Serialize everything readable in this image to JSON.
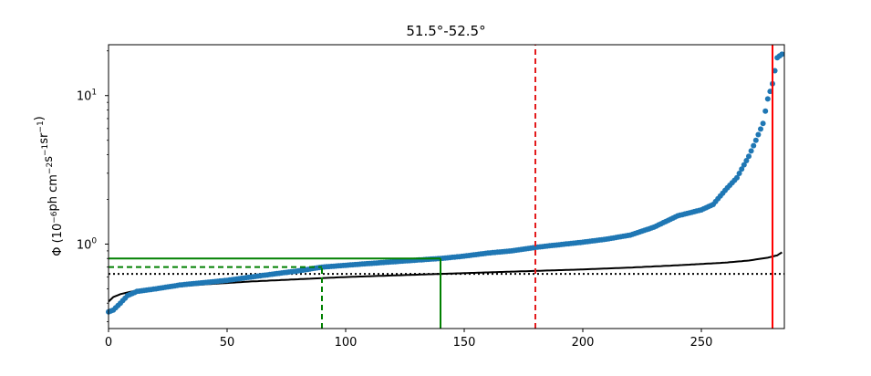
{
  "chart_data": {
    "type": "scatter",
    "title": "51.5°-52.5°",
    "xlabel": "",
    "ylabel_base": "Φ (10",
    "ylabel_parts": [
      {
        "text": "Φ (10",
        "sup": false
      },
      {
        "text": "−6",
        "sup": true
      },
      {
        "text": "ph cm",
        "sup": false
      },
      {
        "text": "−2",
        "sup": true
      },
      {
        "text": "s",
        "sup": false
      },
      {
        "text": "−1",
        "sup": true
      },
      {
        "text": "sr",
        "sup": false
      },
      {
        "text": "−1",
        "sup": true
      },
      {
        "text": ")",
        "sup": false
      }
    ],
    "y_scale": "log",
    "xlim": [
      0,
      285
    ],
    "ylim": [
      0.27,
      22
    ],
    "x_ticks": [
      0,
      50,
      100,
      150,
      200,
      250
    ],
    "y_ticks": [
      {
        "value": 1,
        "base": "10",
        "exp": "0"
      },
      {
        "value": 10,
        "base": "10",
        "exp": "1"
      }
    ],
    "grid": false,
    "colors": {
      "points": "#1f77b4",
      "red": "#ff0000",
      "red_dashed": "#e31a1c",
      "green": "#008000",
      "black": "#000000"
    },
    "anchors": [
      [
        0,
        0.35
      ],
      [
        2,
        0.36
      ],
      [
        5,
        0.4
      ],
      [
        8,
        0.45
      ],
      [
        12,
        0.48
      ],
      [
        20,
        0.5
      ],
      [
        30,
        0.53
      ],
      [
        40,
        0.55
      ],
      [
        50,
        0.57
      ],
      [
        60,
        0.6
      ],
      [
        70,
        0.63
      ],
      [
        80,
        0.66
      ],
      [
        90,
        0.7
      ],
      [
        100,
        0.72
      ],
      [
        110,
        0.74
      ],
      [
        120,
        0.76
      ],
      [
        130,
        0.78
      ],
      [
        140,
        0.8
      ],
      [
        150,
        0.83
      ],
      [
        160,
        0.87
      ],
      [
        170,
        0.9
      ],
      [
        180,
        0.95
      ],
      [
        190,
        0.99
      ],
      [
        200,
        1.03
      ],
      [
        210,
        1.08
      ],
      [
        220,
        1.15
      ],
      [
        230,
        1.3
      ],
      [
        240,
        1.55
      ],
      [
        250,
        1.7
      ],
      [
        255,
        1.85
      ],
      [
        260,
        2.3
      ],
      [
        265,
        2.8
      ],
      [
        270,
        3.9
      ],
      [
        273,
        5.0
      ],
      [
        276,
        6.5
      ],
      [
        278,
        9.5
      ],
      [
        280,
        12
      ],
      [
        282,
        18
      ],
      [
        284,
        19
      ]
    ],
    "n_points": 285,
    "model_curve": [
      [
        0,
        0.41
      ],
      [
        2,
        0.44
      ],
      [
        5,
        0.46
      ],
      [
        10,
        0.48
      ],
      [
        20,
        0.505
      ],
      [
        40,
        0.535
      ],
      [
        60,
        0.56
      ],
      [
        80,
        0.58
      ],
      [
        100,
        0.6
      ],
      [
        120,
        0.615
      ],
      [
        140,
        0.63
      ],
      [
        160,
        0.645
      ],
      [
        180,
        0.66
      ],
      [
        200,
        0.675
      ],
      [
        220,
        0.695
      ],
      [
        240,
        0.72
      ],
      [
        260,
        0.75
      ],
      [
        270,
        0.775
      ],
      [
        278,
        0.81
      ],
      [
        282,
        0.84
      ],
      [
        284,
        0.88
      ]
    ],
    "dotted_level": 0.63,
    "vlines": [
      {
        "x": 180,
        "style": "dashed",
        "color": "red_dashed",
        "from": "bottom",
        "to": "top"
      },
      {
        "x": 280,
        "style": "solid",
        "color": "red",
        "from": "bottom",
        "to": "top"
      },
      {
        "x": 90,
        "style": "dashed",
        "color": "green",
        "from": "bottom",
        "to": 0.7
      },
      {
        "x": 140,
        "style": "solid",
        "color": "green",
        "from": "bottom",
        "to": 0.8
      }
    ],
    "hlines": [
      {
        "y": 0.7,
        "style": "dashed",
        "color": "green",
        "from": 0,
        "to": 90
      },
      {
        "y": 0.8,
        "style": "solid",
        "color": "green",
        "from": 0,
        "to": 140
      }
    ]
  }
}
